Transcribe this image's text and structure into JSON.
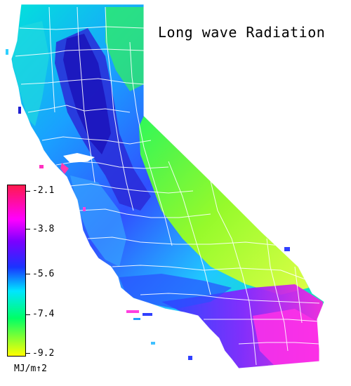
{
  "map": {
    "title": "Long wave Radiation",
    "region": "California",
    "colors": {
      "max": "#ff1a4d",
      "c_38": "#ff00ff",
      "c_mid_high": "#7a00ff",
      "c_56": "#1a33ff",
      "c_cyan": "#00e6ff",
      "c_74": "#00ff66",
      "c_min": "#ffff00",
      "county_lines": "#ffffff"
    }
  },
  "legend": {
    "ticks": [
      "-2.1",
      "-3.8",
      "-5.6",
      "-7.4",
      "-9.2"
    ],
    "unit": "MJ/m↑2"
  }
}
